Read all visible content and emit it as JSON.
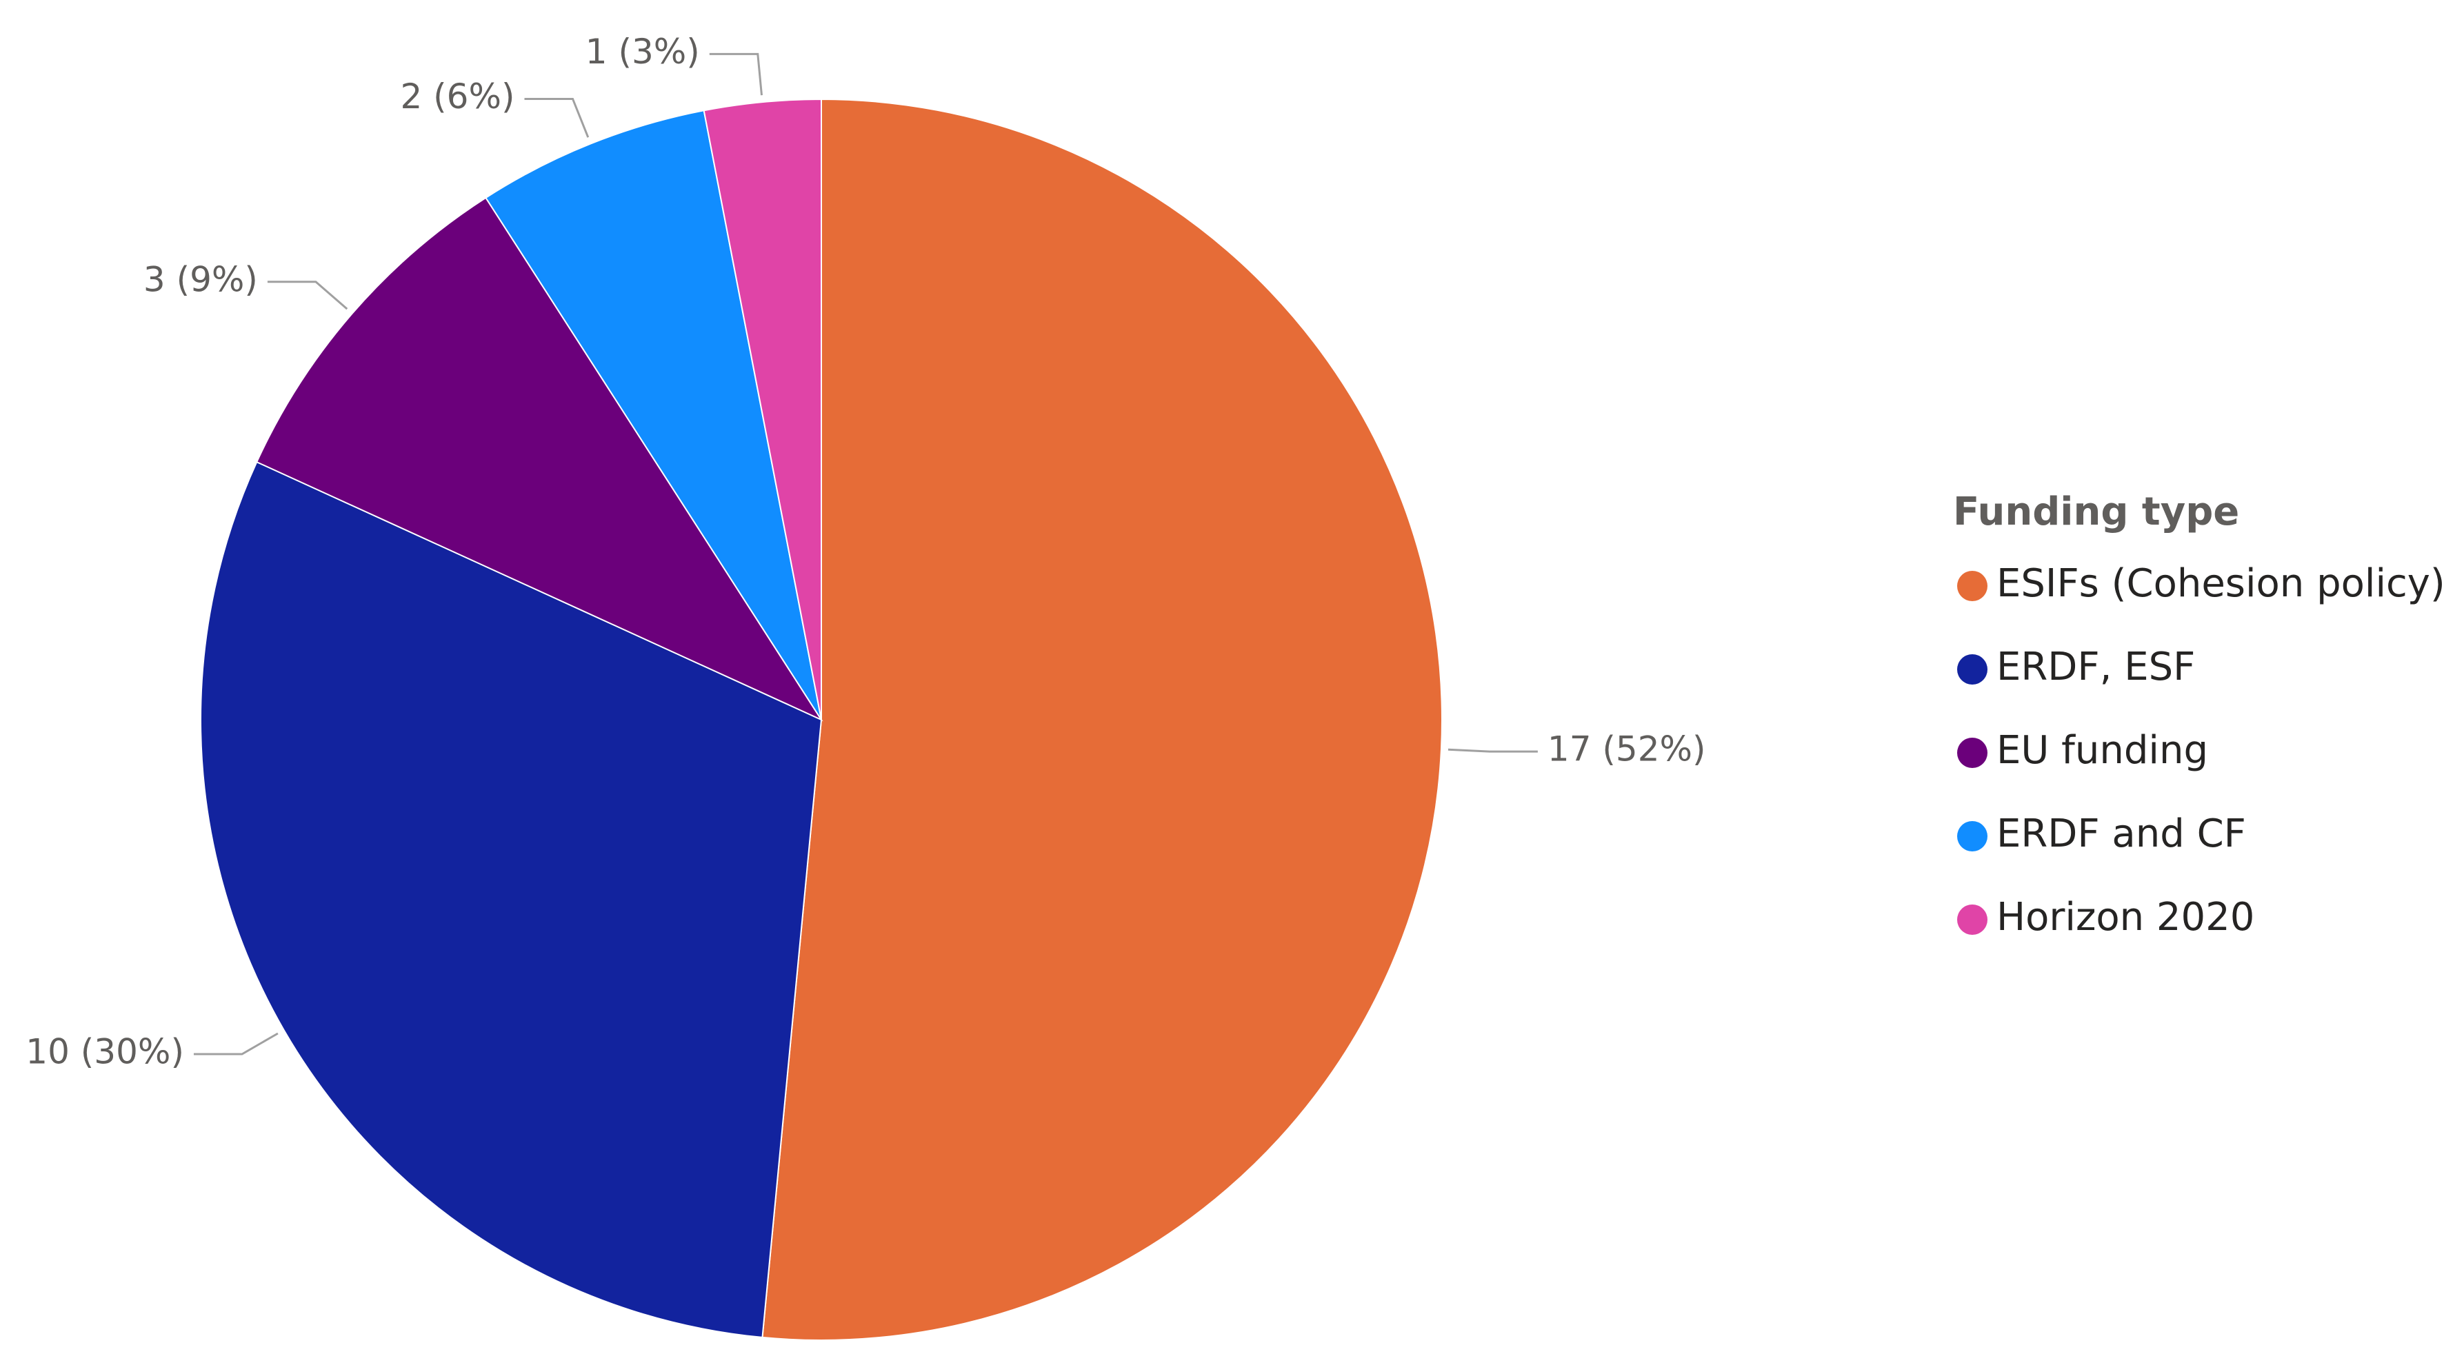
{
  "chart_data": {
    "type": "pie",
    "legend_title": "Funding type",
    "legend": "right",
    "categories": [
      "ESIFs (Cohesion policy)",
      "ERDF, ESF",
      "EU funding",
      "ERDF and CF",
      "Horizon 2020"
    ],
    "values": [
      17,
      10,
      3,
      2,
      1
    ],
    "value_labels": [
      "17 (52%)",
      "10 (30%)",
      "3 (9%)",
      "2 (6%)",
      "1 (3%)"
    ],
    "colors": [
      "#e66c37",
      "#12239e",
      "#6b007b",
      "#118dff",
      "#e044a7"
    ]
  }
}
